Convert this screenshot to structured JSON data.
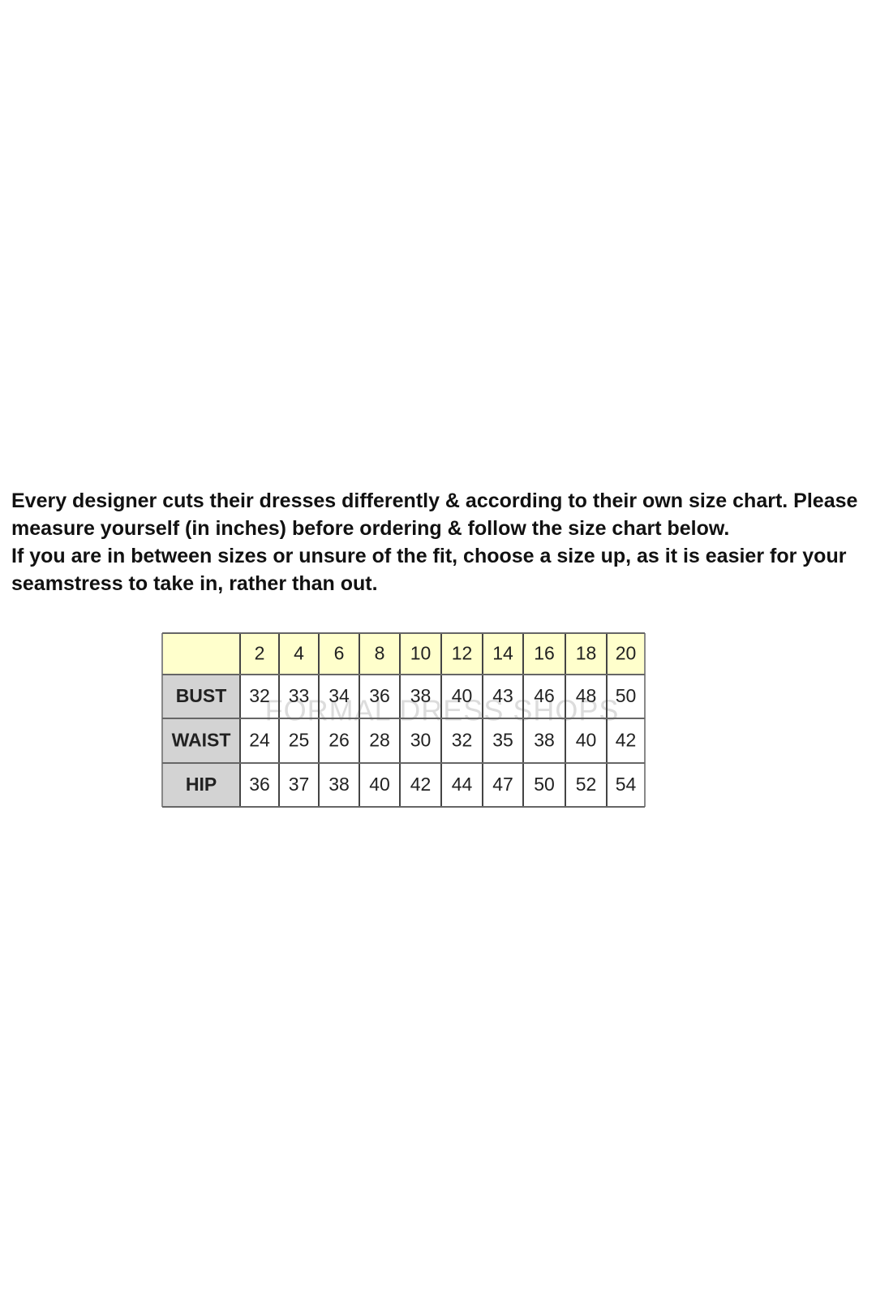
{
  "intro": [
    "Every designer cuts their dresses differently & according to their own size chart. Please measure yourself (in inches) before ordering & follow the size chart below.",
    "If you are in between sizes or unsure of the fit, choose a size up, as it is easier for your seamstress to take in, rather than out."
  ],
  "table": {
    "sizes": [
      2,
      4,
      6,
      8,
      10,
      12,
      14,
      16,
      18,
      20
    ],
    "rows": [
      {
        "label": "BUST",
        "values": [
          32,
          33,
          34,
          36,
          38,
          40,
          43,
          46,
          48,
          50
        ]
      },
      {
        "label": "WAIST",
        "values": [
          24,
          25,
          26,
          28,
          30,
          32,
          35,
          38,
          40,
          42
        ]
      },
      {
        "label": "HIP",
        "values": [
          36,
          37,
          38,
          40,
          42,
          44,
          47,
          50,
          52,
          54
        ]
      }
    ],
    "watermark": "FORMAL DRESS SHOPS"
  }
}
